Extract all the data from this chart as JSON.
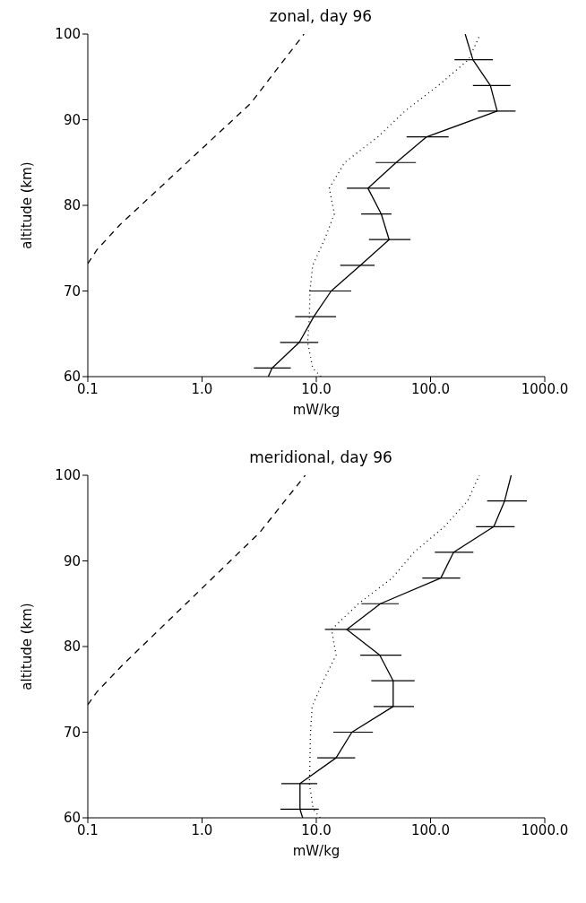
{
  "chart_data": [
    {
      "type": "line",
      "title": "zonal, day 96",
      "xlabel": "mW/kg",
      "ylabel": "altitude (km)",
      "log": "x",
      "xlim": [
        0.1,
        1000
      ],
      "xticks": [
        0.1,
        {
          "value": 1,
          "label": "1.0"
        },
        {
          "value": 10,
          "label": "10.0"
        },
        {
          "value": 100,
          "label": "100.0"
        },
        {
          "value": 1000,
          "label": "1000.0"
        }
      ],
      "ylim": [
        60,
        100
      ],
      "yticks": [
        60,
        70,
        80,
        90,
        100
      ],
      "marker": "none",
      "series": [
        {
          "color": "#000000",
          "line_style": "solid",
          "x": [
            3.8,
            4.1,
            7.1,
            9.5,
            13.5,
            24.4,
            43.4,
            37,
            28.3,
            50,
            92.5,
            383,
            334,
            235,
            201
          ],
          "values": [
            60,
            61,
            64,
            67,
            70,
            73,
            76,
            79,
            82,
            85,
            88,
            91,
            94,
            97,
            100
          ],
          "xerrors": [
            null,
            [
              2.84,
              5.98
            ],
            [
              4.82,
              10.4
            ],
            [
              6.53,
              14.9
            ],
            [
              8.67,
              20.2
            ],
            [
              16.2,
              32.4
            ],
            [
              28.9,
              66.8
            ],
            [
              24.7,
              45.5
            ],
            [
              18.5,
              44
            ],
            [
              33.1,
              74.5
            ],
            [
              61.7,
              144
            ],
            [
              260,
              555
            ],
            [
              235,
              501
            ],
            [
              162,
              351
            ],
            null
          ]
        },
        {
          "color": "#000000",
          "line_style": "dotted",
          "x": [
            11,
            9.3,
            8.4,
            8.7,
            8.8,
            9.3,
            11.8,
            14.4,
            13,
            17.7,
            34.7,
            59.6,
            117,
            215,
            273
          ],
          "values": [
            60,
            61,
            64,
            67,
            70,
            73,
            76,
            79,
            82,
            85,
            88,
            91,
            94,
            97,
            100
          ]
        },
        {
          "color": "#000000",
          "line_style": "dashed",
          "x": [
            0.1,
            0.12,
            0.19,
            2.66,
            7.8
          ],
          "values": [
            73.2,
            74.8,
            77.7,
            91.9,
            100
          ]
        }
      ]
    },
    {
      "type": "line",
      "title": "meridional, day 96",
      "xlabel": "mW/kg",
      "ylabel": "altitude (km)",
      "log": "x",
      "xlim": [
        0.1,
        1000
      ],
      "xticks": [
        0.1,
        {
          "value": 1,
          "label": "1.0"
        },
        {
          "value": 10,
          "label": "10.0"
        },
        {
          "value": 100,
          "label": "100.0"
        },
        {
          "value": 1000,
          "label": "1000.0"
        }
      ],
      "ylim": [
        60,
        100
      ],
      "yticks": [
        60,
        70,
        80,
        90,
        100
      ],
      "marker": "none",
      "series": [
        {
          "color": "#000000",
          "line_style": "solid",
          "x": [
            7.6,
            7.2,
            7.2,
            14.9,
            20.5,
            47.1,
            47.1,
            35.9,
            18.5,
            36.4,
            123,
            159,
            358,
            445,
            508
          ],
          "values": [
            60,
            61,
            64,
            67,
            70,
            73,
            76,
            79,
            82,
            85,
            88,
            91,
            94,
            97,
            100
          ],
          "xerrors": [
            null,
            [
              4.85,
              10.5
            ],
            [
              4.94,
              10.2
            ],
            [
              10.2,
              21.9
            ],
            [
              14.1,
              31.3
            ],
            [
              31.8,
              71.6
            ],
            [
              30.3,
              72.6
            ],
            [
              24.3,
              55.7
            ],
            [
              11.9,
              29.7
            ],
            [
              24.8,
              52.7
            ],
            [
              84.7,
              182
            ],
            [
              109,
              237
            ],
            [
              250,
              544
            ],
            [
              313,
              698
            ],
            null
          ]
        },
        {
          "color": "#000000",
          "line_style": "dotted",
          "x": [
            10.8,
            9.4,
            8.7,
            8.8,
            8.9,
            9.2,
            11.5,
            14.9,
            13.6,
            23.4,
            46.1,
            71.6,
            132,
            211,
            267
          ],
          "values": [
            60,
            61,
            64,
            67,
            70,
            73,
            76,
            79,
            82,
            85,
            88,
            91,
            94,
            97,
            100
          ]
        },
        {
          "color": "#000000",
          "line_style": "dashed",
          "x": [
            0.1,
            0.12,
            0.2,
            3.19,
            8
          ],
          "values": [
            73.2,
            74.7,
            77.8,
            93.3,
            100
          ]
        }
      ]
    }
  ]
}
